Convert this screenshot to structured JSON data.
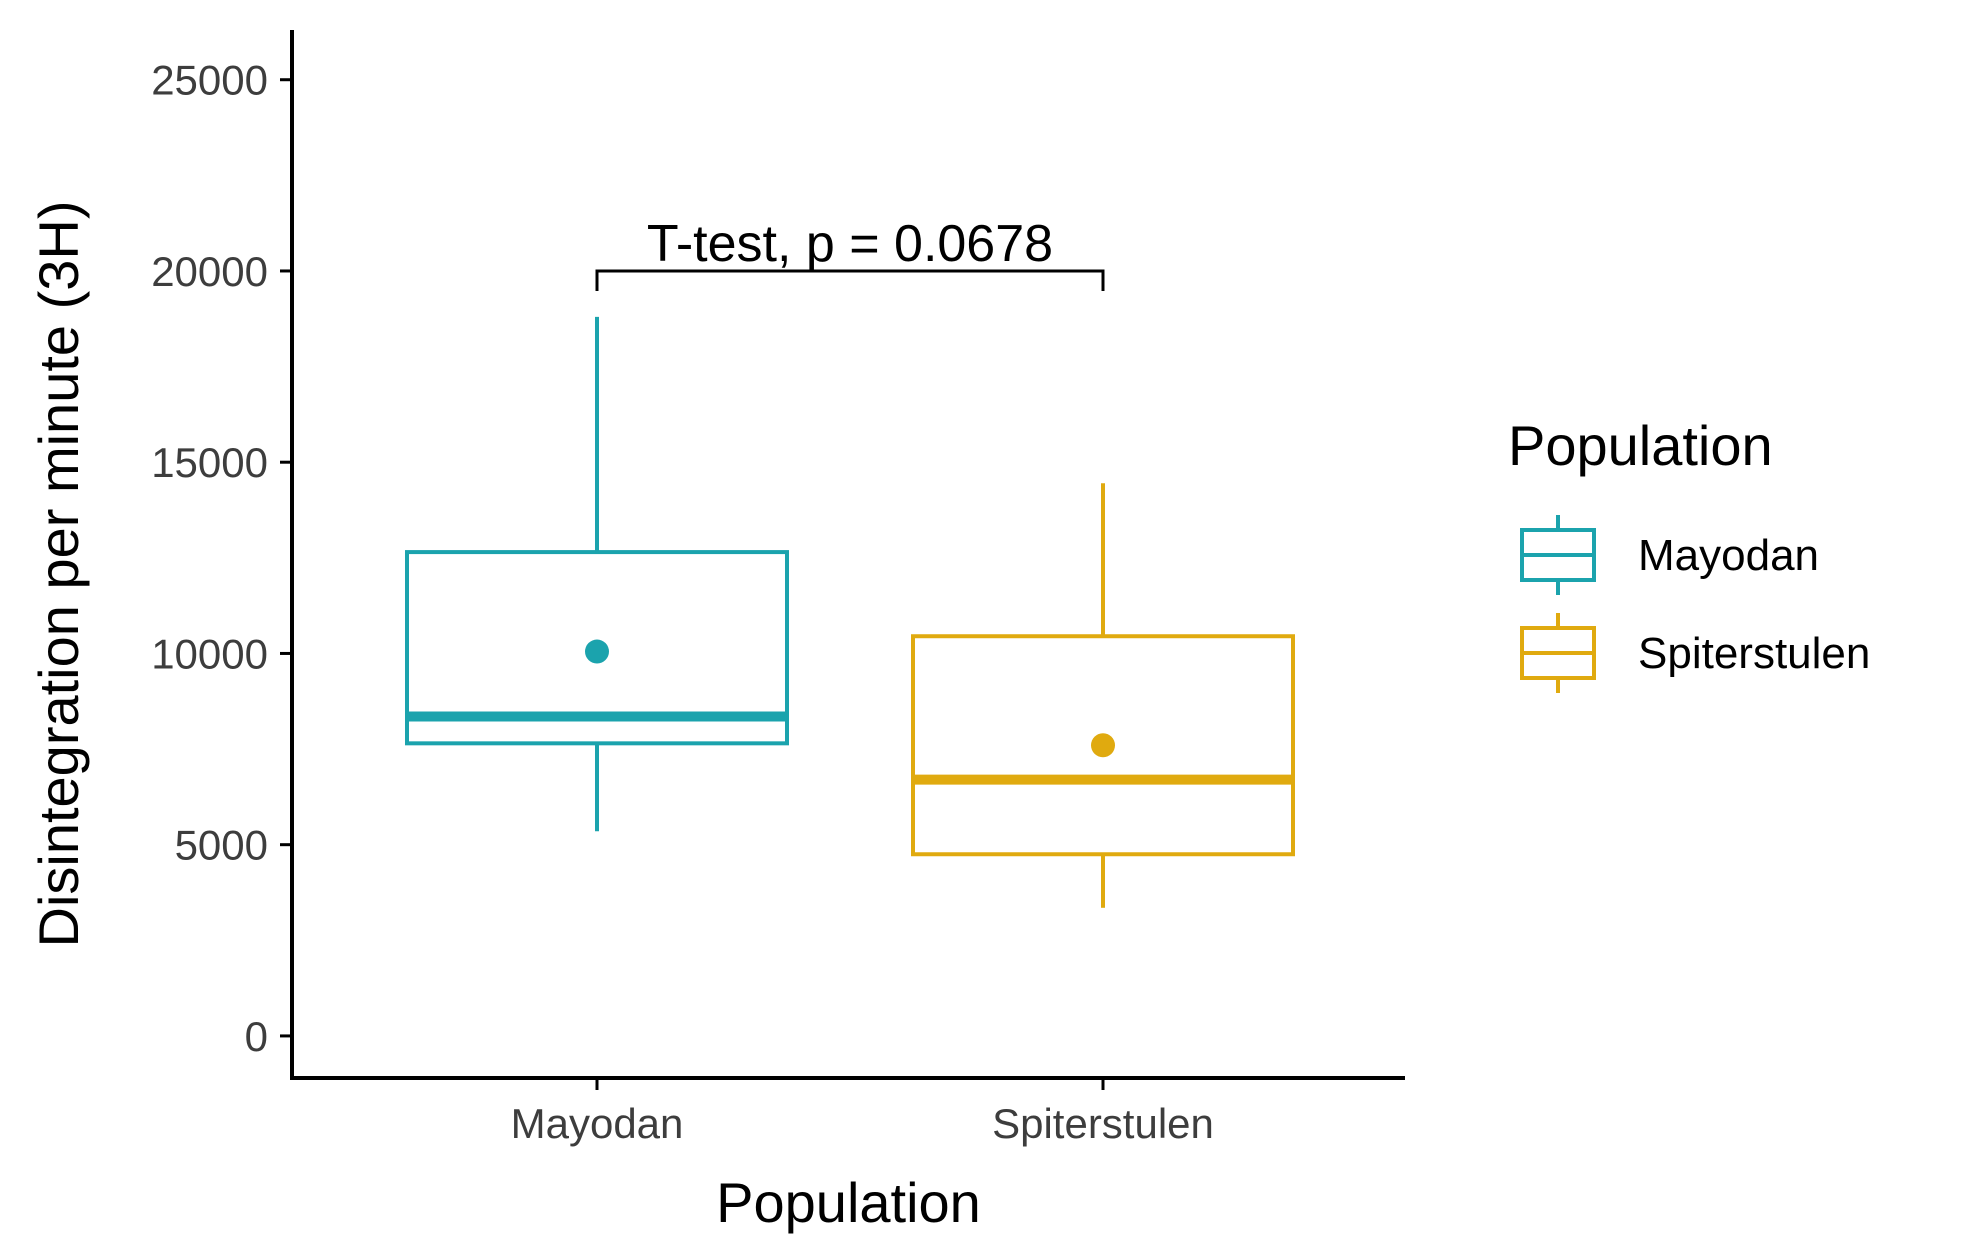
{
  "chart_data": {
    "type": "box",
    "xlabel": "Population",
    "ylabel": "Disintegration per minute (3H)",
    "ylim": [
      -1100,
      26300
    ],
    "y_ticks": [
      0,
      5000,
      10000,
      15000,
      20000,
      25000
    ],
    "categories": [
      "Mayodan",
      "Spiterstulen"
    ],
    "grid": false,
    "legend": {
      "title": "Population",
      "placement": "right",
      "entries": [
        "Mayodan",
        "Spiterstulen"
      ]
    },
    "series": [
      {
        "name": "Mayodan",
        "color": "#1ba3ad",
        "whisker_low": 5350,
        "q1": 7650,
        "median": 8350,
        "q3": 12650,
        "whisker_high": 18800,
        "mean": 10050
      },
      {
        "name": "Spiterstulen",
        "color": "#e0aa0f",
        "whisker_low": 3350,
        "q1": 4750,
        "median": 6700,
        "q3": 10450,
        "whisker_high": 14450,
        "mean": 7600
      }
    ],
    "annotation": {
      "text": "T-test, p = 0.0678",
      "y": 20000,
      "from": "Mayodan",
      "to": "Spiterstulen"
    }
  }
}
